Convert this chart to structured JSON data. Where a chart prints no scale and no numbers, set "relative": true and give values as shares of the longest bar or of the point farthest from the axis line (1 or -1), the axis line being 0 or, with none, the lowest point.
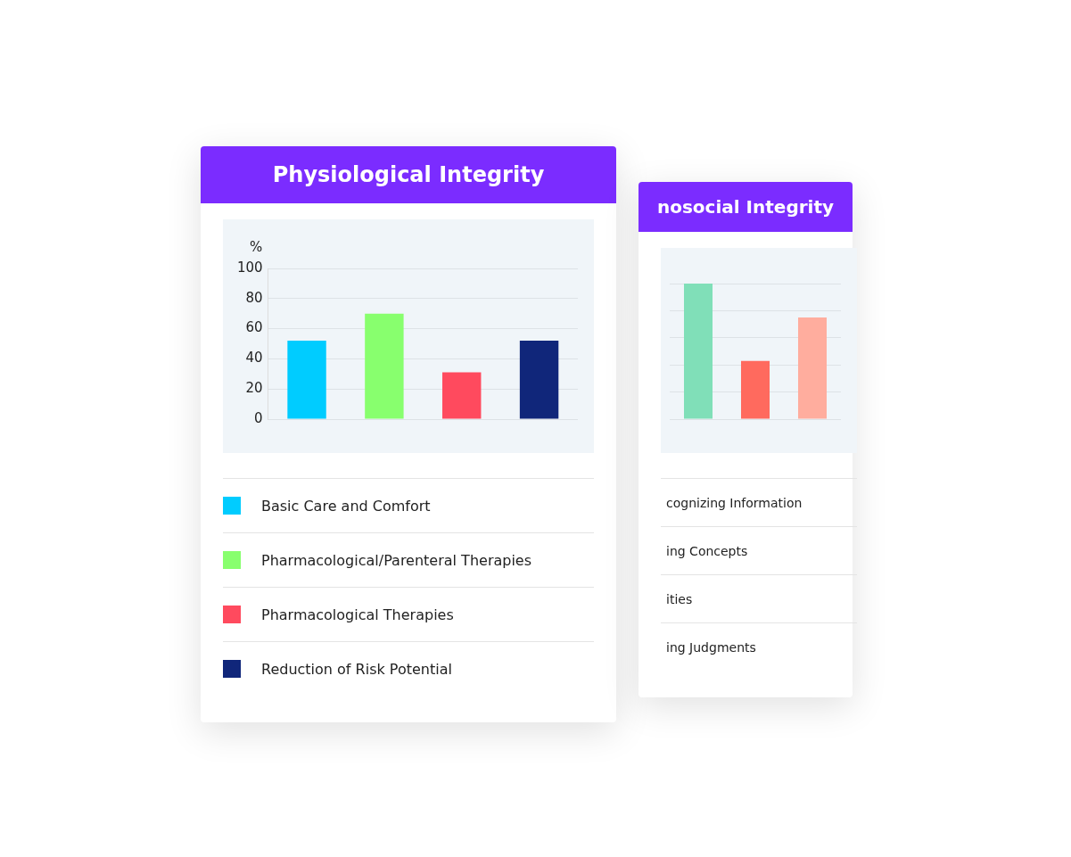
{
  "chart_data": [
    {
      "type": "bar",
      "title": "Physiological Integrity",
      "ylabel": "%",
      "categories": [
        null,
        null,
        null,
        null
      ],
      "series": [
        {
          "name": "Basic Care and Comfort",
          "color": "#00ccff",
          "values": [
            52,
            null,
            null,
            null
          ]
        },
        {
          "name": "Pharmacological/Parenteral Therapies",
          "color": "#88ff6e",
          "values": [
            null,
            70,
            null,
            null
          ]
        },
        {
          "name": "Pharmacological Therapies",
          "color": "#ff4a5e",
          "values": [
            null,
            null,
            31,
            null
          ]
        },
        {
          "name": "Reduction of Risk Potential",
          "color": "#10267a",
          "values": [
            null,
            null,
            null,
            52
          ]
        }
      ],
      "ylim": [
        0,
        100
      ],
      "yticks": [
        0,
        20,
        40,
        60,
        80,
        100
      ],
      "grid": "y",
      "tick_labels": "y",
      "legend": "bottom"
    },
    {
      "type": "bar",
      "title": "nosocial Integrity",
      "categories": [
        null,
        null,
        null
      ],
      "values": [
        1,
        0.43,
        0.75
      ],
      "colors": [
        "#80dfb8",
        "#ff6a5e",
        "#ffad9e"
      ],
      "relative": true,
      "grid": "y",
      "tick_labels": false,
      "annotations": [
        "cognizing Information",
        "ing Concepts",
        "ities",
        "ing Judgments"
      ]
    }
  ]
}
